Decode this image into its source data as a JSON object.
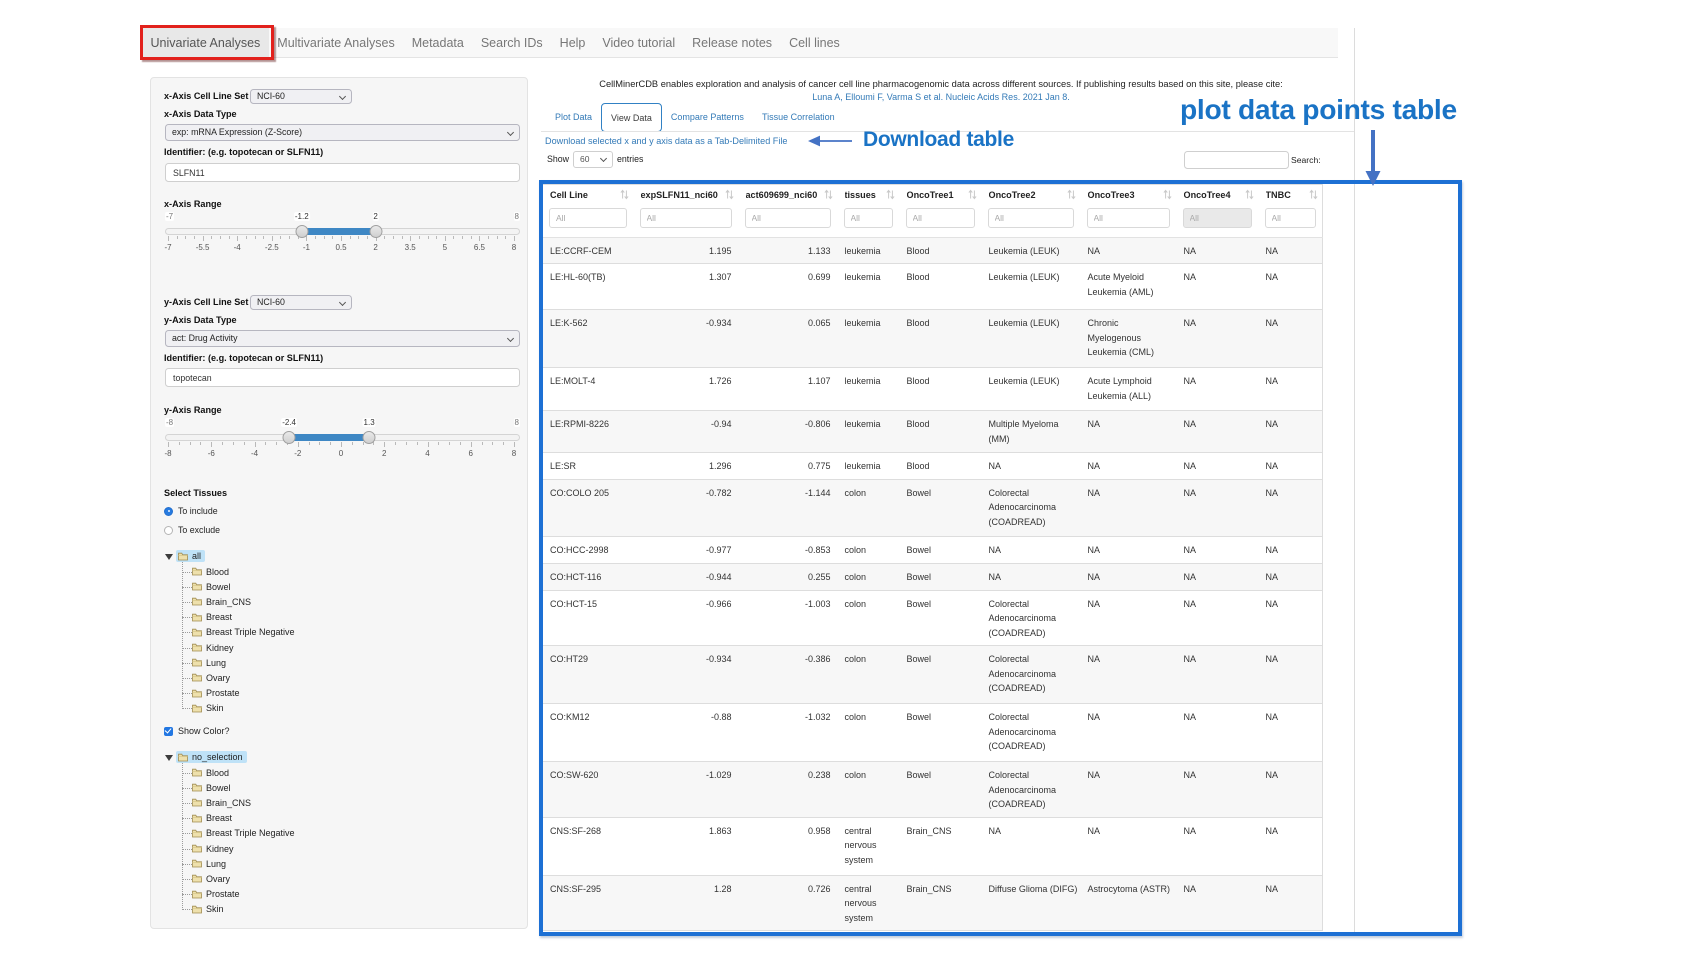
{
  "navbar": {
    "items": [
      {
        "label": "Univariate Analyses",
        "active": true
      },
      {
        "label": "Multivariate Analyses",
        "active": false
      },
      {
        "label": "Metadata",
        "active": false
      },
      {
        "label": "Search IDs",
        "active": false
      },
      {
        "label": "Help",
        "active": false
      },
      {
        "label": "Video tutorial",
        "active": false
      },
      {
        "label": "Release notes",
        "active": false
      },
      {
        "label": "Cell lines",
        "active": false
      }
    ]
  },
  "sidebar": {
    "x_axis": {
      "cell_line_set_label": "x-Axis Cell Line Set",
      "cell_line_set_value": "NCI-60",
      "data_type_label": "x-Axis Data Type",
      "data_type_value": "exp: mRNA Expression (Z-Score)",
      "identifier_label": "Identifier: (e.g. topotecan or SLFN11)",
      "identifier_value": "SLFN11",
      "range_label": "x-Axis Range",
      "slider": {
        "min": -7,
        "max": 8,
        "from": -1.2,
        "to": 2,
        "min_label": "-7",
        "max_label": "8",
        "from_label": "-1.2",
        "to_label": "2",
        "tick_labels": [
          "-7",
          "-5.5",
          "-4",
          "-2.5",
          "-1",
          "0.5",
          "2",
          "3.5",
          "5",
          "6.5",
          "8"
        ]
      }
    },
    "y_axis": {
      "cell_line_set_label": "y-Axis Cell Line Set",
      "cell_line_set_value": "NCI-60",
      "data_type_label": "y-Axis Data Type",
      "data_type_value": "act: Drug Activity",
      "identifier_label": "Identifier: (e.g. topotecan or SLFN11)",
      "identifier_value": "topotecan",
      "range_label": "y-Axis Range",
      "slider": {
        "min": -8,
        "max": 8,
        "from": -2.4,
        "to": 1.3,
        "min_label": "-8",
        "max_label": "8",
        "from_label": "-2.4",
        "to_label": "1.3",
        "tick_labels": [
          "-8",
          "-6",
          "-4",
          "-2",
          "0",
          "2",
          "4",
          "6",
          "8"
        ]
      }
    },
    "tissues": {
      "label": "Select Tissues",
      "include_label": "To include",
      "exclude_label": "To exclude",
      "include_selected": true
    },
    "show_color_label": "Show Color?",
    "tissue_tree": {
      "root": "all",
      "children": [
        "Blood",
        "Bowel",
        "Brain_CNS",
        "Breast",
        "Breast Triple Negative",
        "Kidney",
        "Lung",
        "Ovary",
        "Prostate",
        "Skin"
      ]
    },
    "color_tree": {
      "root": "no_selection",
      "children": [
        "Blood",
        "Bowel",
        "Brain_CNS",
        "Breast",
        "Breast Triple Negative",
        "Kidney",
        "Lung",
        "Ovary",
        "Prostate",
        "Skin"
      ]
    }
  },
  "main": {
    "intro": "CellMinerCDB enables exploration and analysis of cancer cell line pharmacogenomic data across different sources. If publishing results based on this site, please cite:",
    "citation": "Luna A, Elloumi F, Varma S et al. Nucleic Acids Res. 2021 Jan 8.",
    "tabs": [
      {
        "label": "Plot Data",
        "active": false
      },
      {
        "label": "View Data",
        "active": true
      },
      {
        "label": "Compare Patterns",
        "active": false
      },
      {
        "label": "Tissue Correlation",
        "active": false
      }
    ],
    "download_link": "Download selected x and y axis data as a Tab-Delimited File",
    "length_control": {
      "prefix": "Show",
      "value": "60",
      "suffix": "entries"
    },
    "search": {
      "label": "Search:",
      "value": ""
    },
    "table": {
      "columns": [
        "Cell Line",
        "expSLFN11_nci60",
        "act609699_nci60",
        "tissues",
        "OncoTree1",
        "OncoTree2",
        "OncoTree3",
        "OncoTree4",
        "TNBC"
      ],
      "filter_placeholder": "All",
      "disabled_filter_column": "OncoTree4",
      "rows": [
        [
          "LE:CCRF-CEM",
          "1.195",
          "1.133",
          "leukemia",
          "Blood",
          "Leukemia (LEUK)",
          "NA",
          "NA",
          "NA"
        ],
        [
          "LE:HL-60(TB)",
          "1.307",
          "0.699",
          "leukemia",
          "Blood",
          "Leukemia (LEUK)",
          "Acute Myeloid Leukemia (AML)",
          "NA",
          "NA"
        ],
        [
          "LE:K-562",
          "-0.934",
          "0.065",
          "leukemia",
          "Blood",
          "Leukemia (LEUK)",
          "Chronic Myelogenous Leukemia (CML)",
          "NA",
          "NA"
        ],
        [
          "LE:MOLT-4",
          "1.726",
          "1.107",
          "leukemia",
          "Blood",
          "Leukemia (LEUK)",
          "Acute Lymphoid Leukemia (ALL)",
          "NA",
          "NA"
        ],
        [
          "LE:RPMI-8226",
          "-0.94",
          "-0.806",
          "leukemia",
          "Blood",
          "Multiple Myeloma (MM)",
          "NA",
          "NA",
          "NA"
        ],
        [
          "LE:SR",
          "1.296",
          "0.775",
          "leukemia",
          "Blood",
          "NA",
          "NA",
          "NA",
          "NA"
        ],
        [
          "CO:COLO 205",
          "-0.782",
          "-1.144",
          "colon",
          "Bowel",
          "Colorectal Adenocarcinoma (COADREAD)",
          "NA",
          "NA",
          "NA"
        ],
        [
          "CO:HCC-2998",
          "-0.977",
          "-0.853",
          "colon",
          "Bowel",
          "NA",
          "NA",
          "NA",
          "NA"
        ],
        [
          "CO:HCT-116",
          "-0.944",
          "0.255",
          "colon",
          "Bowel",
          "NA",
          "NA",
          "NA",
          "NA"
        ],
        [
          "CO:HCT-15",
          "-0.966",
          "-1.003",
          "colon",
          "Bowel",
          "Colorectal Adenocarcinoma (COADREAD)",
          "NA",
          "NA",
          "NA"
        ],
        [
          "CO:HT29",
          "-0.934",
          "-0.386",
          "colon",
          "Bowel",
          "Colorectal Adenocarcinoma (COADREAD)",
          "NA",
          "NA",
          "NA"
        ],
        [
          "CO:KM12",
          "-0.88",
          "-1.032",
          "colon",
          "Bowel",
          "Colorectal Adenocarcinoma (COADREAD)",
          "NA",
          "NA",
          "NA"
        ],
        [
          "CO:SW-620",
          "-1.029",
          "0.238",
          "colon",
          "Bowel",
          "Colorectal Adenocarcinoma (COADREAD)",
          "NA",
          "NA",
          "NA"
        ],
        [
          "CNS:SF-268",
          "1.863",
          "0.958",
          "central nervous system",
          "Brain_CNS",
          "NA",
          "NA",
          "NA",
          "NA"
        ],
        [
          "CNS:SF-295",
          "1.28",
          "0.726",
          "central nervous system",
          "Brain_CNS",
          "Diffuse Glioma (DIFG)",
          "Astrocytoma (ASTR)",
          "NA",
          "NA"
        ]
      ]
    }
  },
  "annotations": {
    "download_table_label": "Download table",
    "plot_table_label": "plot data points table",
    "red_box_color": "#e2211c",
    "blue_text_color": "#1a73c5",
    "arrow_color": "#4472c4",
    "blue_rect_color": "#1d70d4"
  }
}
